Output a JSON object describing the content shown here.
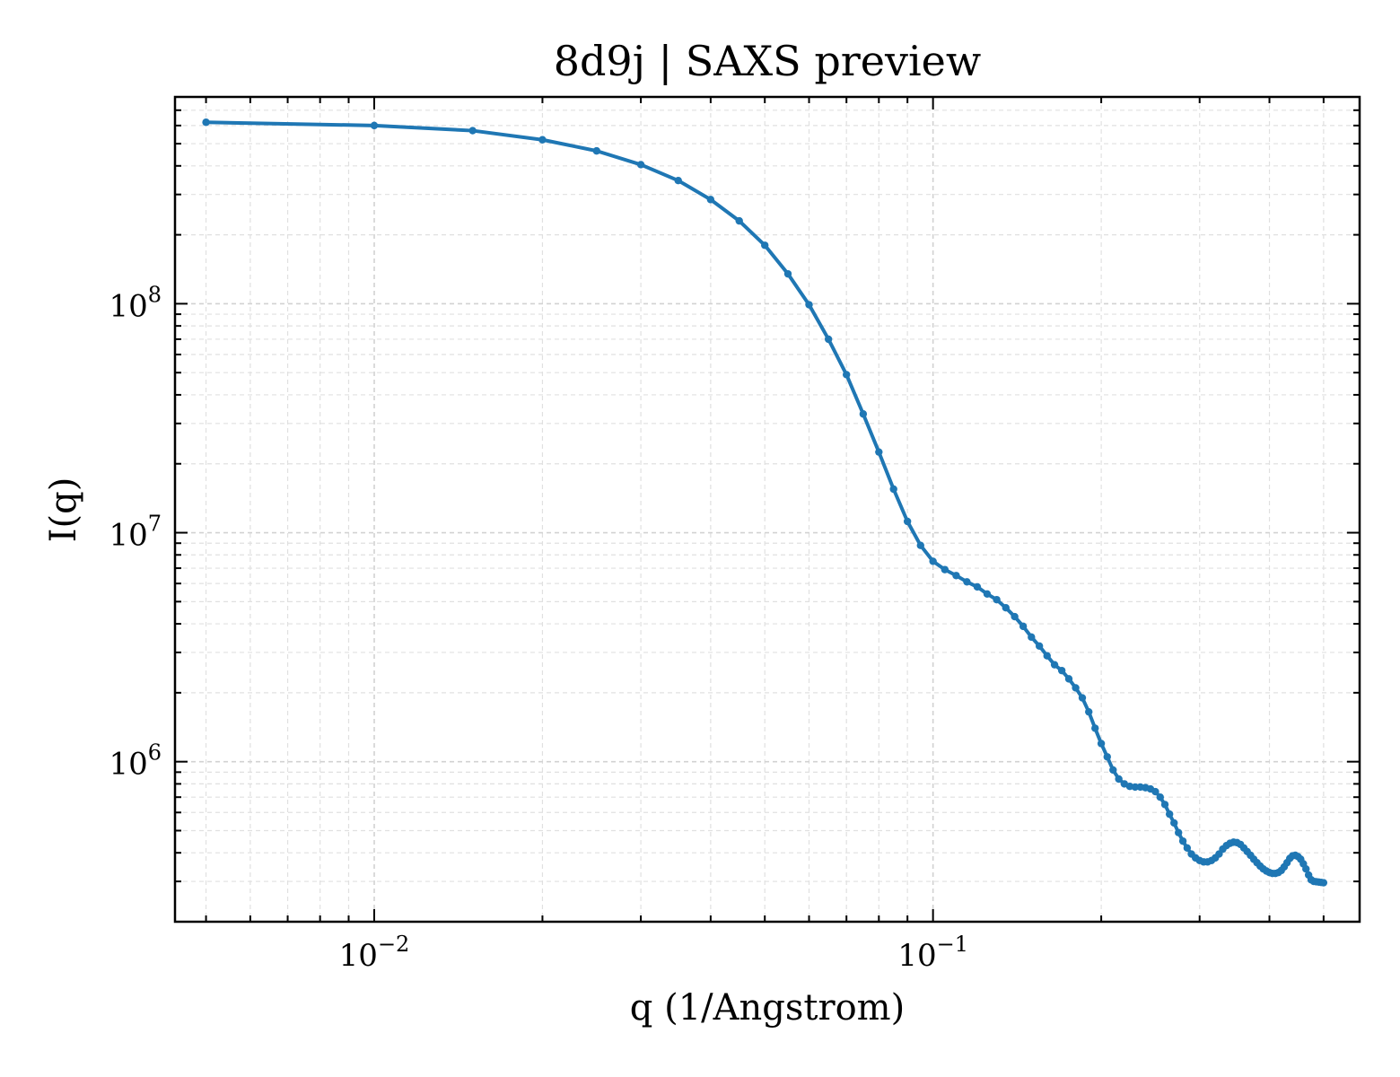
{
  "chart_data": {
    "type": "line",
    "title": "8d9j | SAXS preview",
    "xlabel": "q (1/Angstrom)",
    "ylabel": "I(q)",
    "xscale": "log",
    "yscale": "log",
    "xlim": [
      0.0044,
      0.58
    ],
    "ylim": [
      200000,
      800000000
    ],
    "x_ticks": [
      {
        "value": 0.01,
        "base": "10",
        "exp": "−2"
      },
      {
        "value": 0.1,
        "base": "10",
        "exp": "−1"
      }
    ],
    "y_ticks": [
      {
        "value": 1000000,
        "base": "10",
        "exp": "6"
      },
      {
        "value": 10000000,
        "base": "10",
        "exp": "7"
      },
      {
        "value": 100000000,
        "base": "10",
        "exp": "8"
      }
    ],
    "grid": true,
    "line_color": "#1f77b4",
    "series": [
      {
        "x": [
          0.005,
          0.01,
          0.015,
          0.02,
          0.025,
          0.03,
          0.035,
          0.04,
          0.045,
          0.05,
          0.055,
          0.06,
          0.065,
          0.07,
          0.075,
          0.08,
          0.085,
          0.09,
          0.095,
          0.1,
          0.105,
          0.11,
          0.115,
          0.12,
          0.125,
          0.13,
          0.135,
          0.14,
          0.145,
          0.15,
          0.155,
          0.16,
          0.165,
          0.17,
          0.175,
          0.18,
          0.185,
          0.19,
          0.195,
          0.2,
          0.205,
          0.21,
          0.215,
          0.22,
          0.225,
          0.23,
          0.235,
          0.24,
          0.245,
          0.25,
          0.255,
          0.26,
          0.265,
          0.27,
          0.275,
          0.28,
          0.285,
          0.29,
          0.295,
          0.3,
          0.305,
          0.31,
          0.315,
          0.32,
          0.325,
          0.33,
          0.335,
          0.34,
          0.345,
          0.35,
          0.355,
          0.36,
          0.365,
          0.37,
          0.375,
          0.38,
          0.385,
          0.39,
          0.395,
          0.4,
          0.405,
          0.41,
          0.415,
          0.42,
          0.425,
          0.43,
          0.435,
          0.44,
          0.445,
          0.45,
          0.455,
          0.46,
          0.465,
          0.47,
          0.475,
          0.48,
          0.485,
          0.49,
          0.495,
          0.5
        ],
        "y": [
          620000000,
          600000000,
          570000000,
          520000000,
          465000000,
          405000000,
          345000000,
          285000000,
          230000000,
          180000000,
          135000000,
          99000000,
          70000000,
          49000000,
          33000000,
          22500000,
          15500000,
          11200000,
          8800000,
          7500000,
          6900000,
          6500000,
          6100000,
          5800000,
          5400000,
          5100000,
          4700000,
          4300000,
          3900000,
          3500000,
          3200000,
          2900000,
          2650000,
          2500000,
          2300000,
          2100000,
          1900000,
          1650000,
          1400000,
          1200000,
          1050000,
          920000,
          840000,
          800000,
          780000,
          775000,
          775000,
          770000,
          760000,
          740000,
          700000,
          650000,
          590000,
          540000,
          490000,
          450000,
          420000,
          395000,
          380000,
          370000,
          365000,
          365000,
          370000,
          380000,
          395000,
          415000,
          430000,
          440000,
          445000,
          443000,
          435000,
          420000,
          405000,
          390000,
          375000,
          362000,
          350000,
          340000,
          333000,
          328000,
          325000,
          325000,
          328000,
          335000,
          347000,
          362000,
          378000,
          388000,
          390000,
          385000,
          375000,
          358000,
          340000,
          320000,
          305000,
          300000,
          299000,
          298000,
          297000,
          296000
        ]
      }
    ]
  }
}
